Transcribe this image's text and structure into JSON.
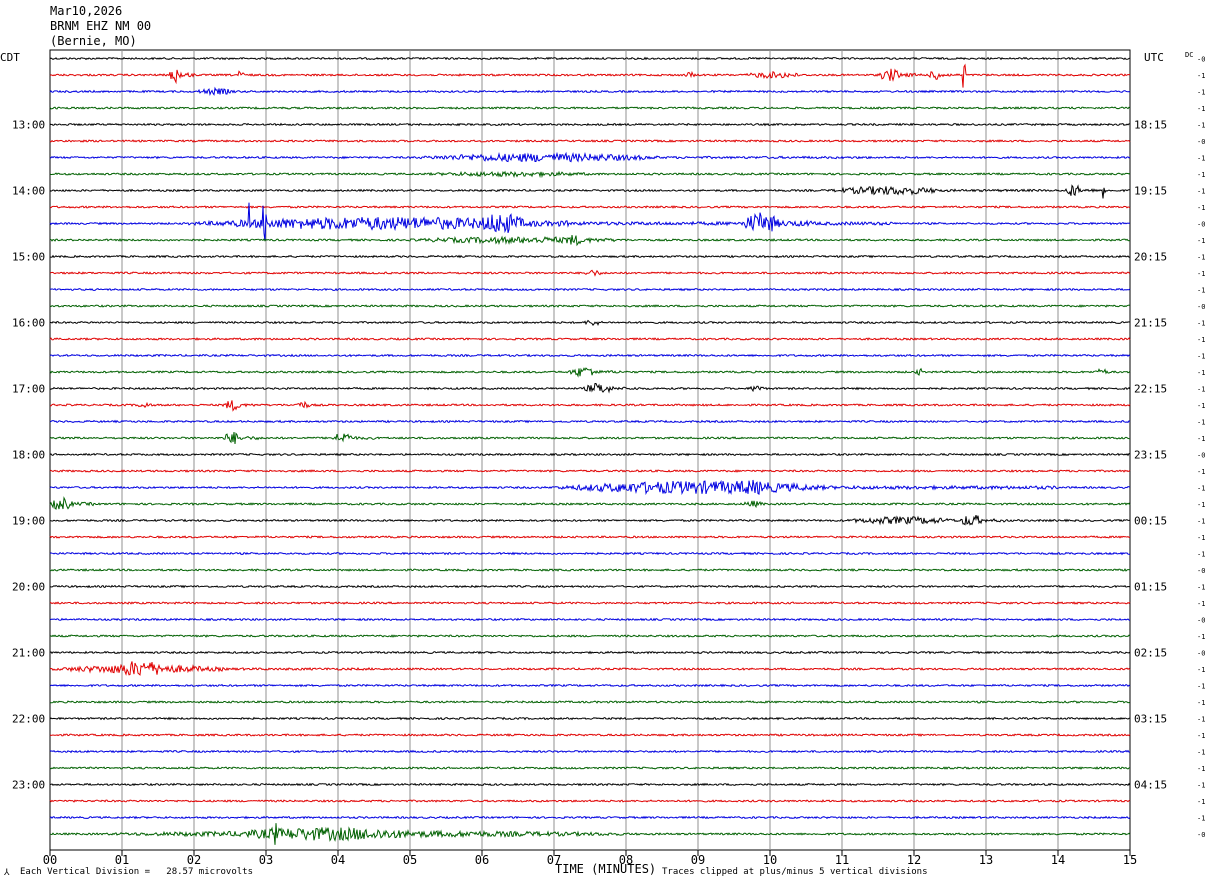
{
  "header": {
    "date": "Mar10,2026",
    "station": "BRNM EHZ NM 00",
    "location": "(Bernie, MO)"
  },
  "chart_data": {
    "type": "line",
    "title": "",
    "left_timezone": "CDT",
    "right_timezone": "UTC",
    "dc_label": "DC",
    "xlabel": "TIME (MINUTES)",
    "xlim": [
      0,
      15
    ],
    "x_tick_labels": [
      "00",
      "01",
      "02",
      "03",
      "04",
      "05",
      "06",
      "07",
      "08",
      "09",
      "10",
      "11",
      "12",
      "13",
      "14",
      "15"
    ],
    "left_hour_labels": [
      {
        "row": 4,
        "label": "13:00"
      },
      {
        "row": 8,
        "label": "14:00"
      },
      {
        "row": 12,
        "label": "15:00"
      },
      {
        "row": 16,
        "label": "16:00"
      },
      {
        "row": 20,
        "label": "17:00"
      },
      {
        "row": 24,
        "label": "18:00"
      },
      {
        "row": 28,
        "label": "19:00"
      },
      {
        "row": 32,
        "label": "20:00"
      },
      {
        "row": 36,
        "label": "21:00"
      },
      {
        "row": 40,
        "label": "22:00"
      },
      {
        "row": 44,
        "label": "23:00"
      }
    ],
    "right_hour_labels": [
      {
        "row": 4,
        "label": "18:15"
      },
      {
        "row": 8,
        "label": "19:15"
      },
      {
        "row": 12,
        "label": "20:15"
      },
      {
        "row": 16,
        "label": "21:15"
      },
      {
        "row": 20,
        "label": "22:15"
      },
      {
        "row": 24,
        "label": "23:15"
      },
      {
        "row": 28,
        "label": "00:15"
      },
      {
        "row": 32,
        "label": "01:15"
      },
      {
        "row": 36,
        "label": "02:15"
      },
      {
        "row": 40,
        "label": "03:15"
      },
      {
        "row": 44,
        "label": "04:15"
      }
    ],
    "dc_offsets": [
      "-0",
      "-1",
      "-1",
      "-1",
      "-1",
      "-0",
      "-1",
      "-1",
      "-1",
      "-1",
      "-0",
      "-1",
      "-1",
      "-1",
      "-1",
      "-0",
      "-1",
      "-1",
      "-1",
      "-1",
      "-1",
      "-1",
      "-1",
      "-1",
      "-0",
      "-1",
      "-1",
      "-1",
      "-1",
      "-1",
      "-1",
      "-0",
      "-1",
      "-1",
      "-0",
      "-1",
      "-0",
      "-1",
      "-1",
      "-1",
      "-1",
      "-1",
      "-1",
      "-1",
      "-1",
      "-1",
      "-1",
      "-0"
    ],
    "trace_colors": [
      "#000000",
      "#e00000",
      "#0000e0",
      "#006000"
    ],
    "grid": true,
    "events": [
      {
        "row": 1,
        "minute": 1.65,
        "duration": 0.35,
        "amp": 1.5
      },
      {
        "row": 1,
        "minute": 2.55,
        "duration": 0.3,
        "amp": 0.7
      },
      {
        "row": 1,
        "minute": 8.8,
        "duration": 0.3,
        "amp": 0.6
      },
      {
        "row": 1,
        "minute": 9.6,
        "duration": 1.6,
        "amp": 0.6
      },
      {
        "row": 1,
        "minute": 11.5,
        "duration": 0.6,
        "amp": 1.2
      },
      {
        "row": 1,
        "minute": 12.2,
        "duration": 0.4,
        "amp": 1.0
      },
      {
        "row": 1,
        "minute": 12.68,
        "duration": 0.04,
        "amp": 4.5
      },
      {
        "row": 2,
        "minute": 2.0,
        "duration": 1.1,
        "amp": 0.6
      },
      {
        "row": 6,
        "minute": 5.0,
        "duration": 6.5,
        "amp": 0.8
      },
      {
        "row": 7,
        "minute": 5.0,
        "duration": 5.0,
        "amp": 0.45
      },
      {
        "row": 8,
        "minute": 10.8,
        "duration": 3.0,
        "amp": 0.8
      },
      {
        "row": 8,
        "minute": 14.1,
        "duration": 0.4,
        "amp": 1.2
      },
      {
        "row": 8,
        "minute": 14.6,
        "duration": 0.06,
        "amp": 2.5
      },
      {
        "row": 10,
        "minute": 1.9,
        "duration": 9.8,
        "amp": 1.2
      },
      {
        "row": 10,
        "minute": 5.9,
        "duration": 1.3,
        "amp": 2.0
      },
      {
        "row": 10,
        "minute": 9.6,
        "duration": 1.0,
        "amp": 2.0
      },
      {
        "row": 10,
        "minute": 2.72,
        "duration": 0.05,
        "amp": 4.5
      },
      {
        "row": 10,
        "minute": 2.95,
        "duration": 0.05,
        "amp": 4.5
      },
      {
        "row": 11,
        "minute": 4.8,
        "duration": 6.0,
        "amp": 0.6
      },
      {
        "row": 11,
        "minute": 7.1,
        "duration": 0.6,
        "amp": 1.0
      },
      {
        "row": 13,
        "minute": 7.4,
        "duration": 0.5,
        "amp": 0.6
      },
      {
        "row": 16,
        "minute": 7.4,
        "duration": 0.5,
        "amp": 0.6
      },
      {
        "row": 19,
        "minute": 7.2,
        "duration": 0.8,
        "amp": 1.0
      },
      {
        "row": 19,
        "minute": 12.0,
        "duration": 0.3,
        "amp": 0.6
      },
      {
        "row": 19,
        "minute": 14.5,
        "duration": 0.4,
        "amp": 0.6
      },
      {
        "row": 20,
        "minute": 7.4,
        "duration": 0.8,
        "amp": 1.0
      },
      {
        "row": 20,
        "minute": 9.7,
        "duration": 0.4,
        "amp": 0.7
      },
      {
        "row": 21,
        "minute": 1.2,
        "duration": 0.4,
        "amp": 0.6
      },
      {
        "row": 21,
        "minute": 2.4,
        "duration": 0.5,
        "amp": 1.0
      },
      {
        "row": 21,
        "minute": 3.4,
        "duration": 0.4,
        "amp": 0.7
      },
      {
        "row": 23,
        "minute": 2.4,
        "duration": 0.5,
        "amp": 1.2
      },
      {
        "row": 23,
        "minute": 3.9,
        "duration": 0.6,
        "amp": 1.0
      },
      {
        "row": 26,
        "minute": 7.0,
        "duration": 7.0,
        "amp": 1.2
      },
      {
        "row": 26,
        "minute": 9.3,
        "duration": 1.5,
        "amp": 1.4
      },
      {
        "row": 27,
        "minute": 0.0,
        "duration": 0.6,
        "amp": 1.2
      },
      {
        "row": 27,
        "minute": 9.6,
        "duration": 0.6,
        "amp": 0.6
      },
      {
        "row": 28,
        "minute": 11.0,
        "duration": 3.0,
        "amp": 0.7
      },
      {
        "row": 28,
        "minute": 12.6,
        "duration": 0.7,
        "amp": 1.1
      },
      {
        "row": 37,
        "minute": 0.0,
        "duration": 4.5,
        "amp": 0.8
      },
      {
        "row": 37,
        "minute": 0.8,
        "duration": 1.6,
        "amp": 1.5
      },
      {
        "row": 47,
        "minute": 0.3,
        "duration": 14.7,
        "amp": 0.6
      },
      {
        "row": 47,
        "minute": 2.3,
        "duration": 5.5,
        "amp": 1.2
      },
      {
        "row": 47,
        "minute": 3.05,
        "duration": 0.25,
        "amp": 2.2
      }
    ]
  },
  "footer": {
    "scale_note": "Each Vertical Division =   28.57 microvolts",
    "clip_note": "Traces clipped at plus/minus 5 vertical divisions"
  }
}
